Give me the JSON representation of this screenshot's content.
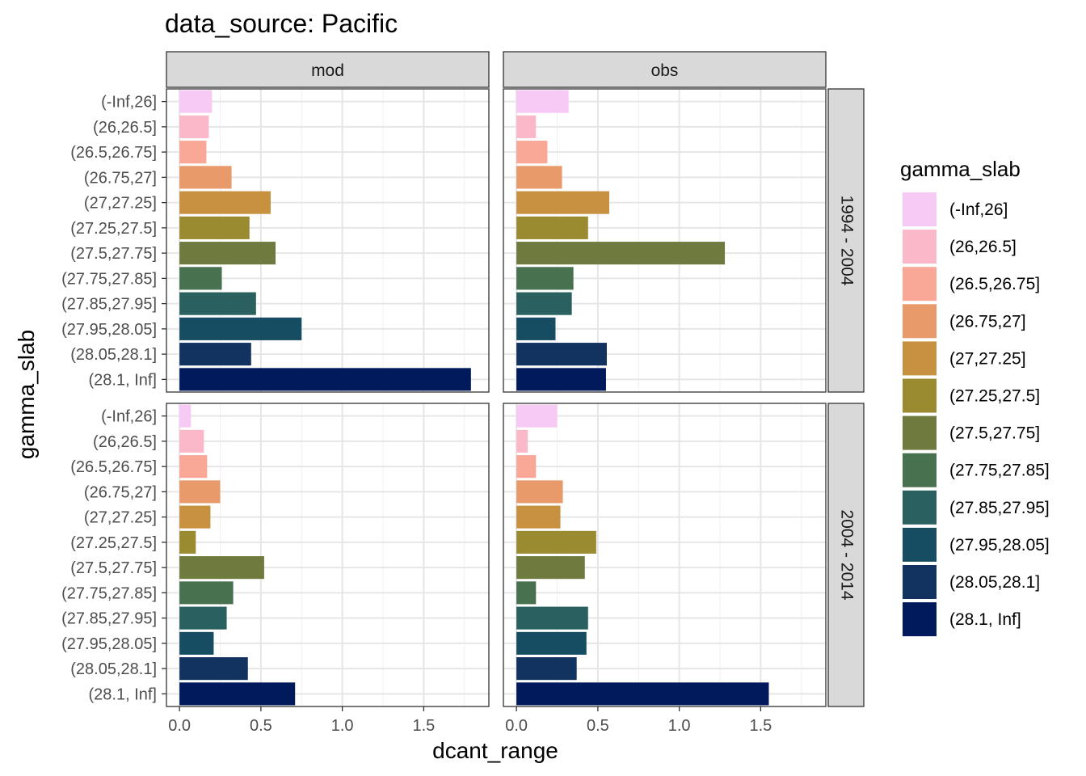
{
  "chart_data": {
    "type": "bar",
    "orientation": "horizontal",
    "title": "data_source: Pacific",
    "xlabel": "dcant_range",
    "ylabel": "gamma_slab",
    "xlim": [
      -0.08,
      1.9
    ],
    "x_ticks": [
      0.0,
      0.5,
      1.0,
      1.5
    ],
    "x_tick_labels": [
      "0.0",
      "0.5",
      "1.0",
      "1.5"
    ],
    "grid": true,
    "legend_position": "right",
    "legend_title": "gamma_slab",
    "categories": [
      "(-Inf,26]",
      "(26,26.5]",
      "(26.5,26.75]",
      "(26.75,27]",
      "(27,27.25]",
      "(27.25,27.5]",
      "(27.5,27.75]",
      "(27.75,27.85]",
      "(27.85,27.95]",
      "(27.95,28.05]",
      "(28.05,28.1]",
      "(28.1, Inf]"
    ],
    "colors": [
      "#f7c9f5",
      "#fbb8c8",
      "#f9a898",
      "#e99a6a",
      "#c8913f",
      "#9a8a30",
      "#6e7a3e",
      "#48714f",
      "#2a6160",
      "#174d62",
      "#12325f",
      "#001a5c"
    ],
    "facet_columns": [
      "mod",
      "obs"
    ],
    "facet_rows": [
      "1994 - 2004",
      "2004 - 2014"
    ],
    "panels": [
      {
        "column": "mod",
        "row": "1994 - 2004",
        "values": [
          0.2,
          0.18,
          0.165,
          0.32,
          0.56,
          0.43,
          0.59,
          0.26,
          0.47,
          0.75,
          0.44,
          1.79
        ]
      },
      {
        "column": "obs",
        "row": "1994 - 2004",
        "values": [
          0.32,
          0.12,
          0.19,
          0.28,
          0.57,
          0.44,
          1.28,
          0.35,
          0.34,
          0.24,
          0.555,
          0.55
        ]
      },
      {
        "column": "mod",
        "row": "2004 - 2014",
        "values": [
          0.07,
          0.15,
          0.17,
          0.25,
          0.19,
          0.1,
          0.52,
          0.33,
          0.29,
          0.21,
          0.42,
          0.71
        ]
      },
      {
        "column": "obs",
        "row": "2004 - 2014",
        "values": [
          0.25,
          0.07,
          0.12,
          0.285,
          0.27,
          0.49,
          0.42,
          0.12,
          0.44,
          0.43,
          0.37,
          1.55
        ]
      }
    ]
  }
}
